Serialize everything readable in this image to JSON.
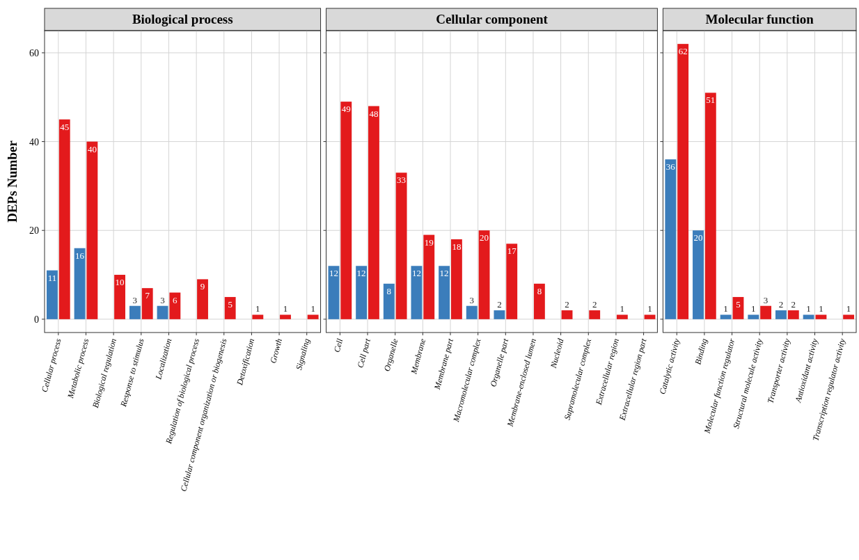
{
  "chart_data": [
    {
      "type": "bar",
      "title": "Biological process",
      "ylabel": "DEPs Number",
      "categories": [
        "Cellular process",
        "Metabolic process",
        "Biological regulation",
        "Response to stimulus",
        "Localization",
        "Regulation of biological process",
        "Cellular component organization or biogenesis",
        "Detoxification",
        "Growth",
        "Signaling"
      ],
      "series": [
        {
          "color": "#3b7dbb",
          "values": [
            11,
            16,
            null,
            3,
            3,
            null,
            null,
            null,
            null,
            null
          ]
        },
        {
          "color": "#e31a1c",
          "values": [
            45,
            40,
            10,
            7,
            6,
            9,
            5,
            1,
            1,
            1
          ]
        }
      ],
      "ylim": [
        -3,
        65
      ],
      "yticks": [
        0,
        20,
        40,
        60
      ],
      "grid": true,
      "data_labels": true
    },
    {
      "type": "bar",
      "title": "Cellular component",
      "categories": [
        "Cell",
        "Cell part",
        "Organelle",
        "Membrane",
        "Membrane part",
        "Macromolecular complex",
        "Organelle part",
        "Membrane-enclosed lumen",
        "Nucleoid",
        "Supramolecular complex",
        "Extracellular region",
        "Extracellular region part"
      ],
      "series": [
        {
          "color": "#3b7dbb",
          "values": [
            12,
            12,
            8,
            12,
            12,
            3,
            2,
            null,
            null,
            null,
            null,
            null
          ]
        },
        {
          "color": "#e31a1c",
          "values": [
            49,
            48,
            33,
            19,
            18,
            20,
            17,
            8,
            2,
            2,
            1,
            1
          ]
        }
      ],
      "ylim": [
        -3,
        65
      ],
      "yticks": [
        0,
        20,
        40,
        60
      ],
      "grid": true,
      "data_labels": true,
      "tick_labels": "x"
    },
    {
      "type": "bar",
      "title": "Molecular function",
      "categories": [
        "Catalytic activity",
        "Binding",
        "Molecular function regulator",
        "Structural molecule activity",
        "Transporter activity",
        "Antioxidant activity",
        "Transcription regulator activity"
      ],
      "series": [
        {
          "color": "#3b7dbb",
          "values": [
            36,
            20,
            1,
            1,
            2,
            1,
            null
          ]
        },
        {
          "color": "#e31a1c",
          "values": [
            62,
            51,
            5,
            3,
            2,
            1,
            1
          ]
        }
      ],
      "ylim": [
        -3,
        65
      ],
      "yticks": [
        0,
        20,
        40,
        60
      ],
      "grid": true,
      "data_labels": true,
      "tick_labels": "x"
    }
  ]
}
